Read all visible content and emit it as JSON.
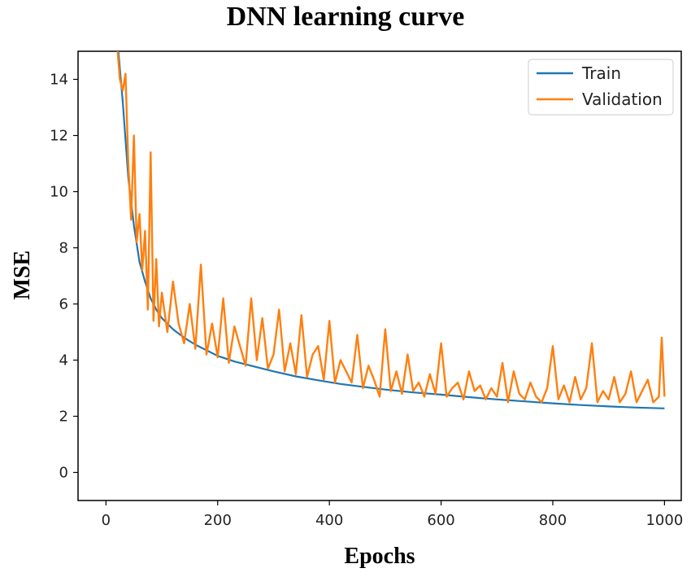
{
  "chart_data": {
    "type": "line",
    "title": "DNN learning curve",
    "xlabel": "Epochs",
    "ylabel": "MSE",
    "xlim": [
      -50,
      1030
    ],
    "ylim": [
      -1,
      15
    ],
    "xticks": [
      0,
      200,
      400,
      600,
      800,
      1000
    ],
    "yticks": [
      0,
      2,
      4,
      6,
      8,
      10,
      12,
      14
    ],
    "grid": false,
    "legend_position": "top-right",
    "series": [
      {
        "name": "Train",
        "color": "#1f77b4",
        "x": [
          20,
          30,
          40,
          50,
          60,
          70,
          80,
          90,
          100,
          120,
          140,
          160,
          180,
          200,
          230,
          260,
          300,
          340,
          380,
          420,
          460,
          500,
          550,
          600,
          650,
          700,
          750,
          800,
          850,
          900,
          950,
          1000
        ],
        "y": [
          15.5,
          13.2,
          10.5,
          8.8,
          7.5,
          6.8,
          6.2,
          5.8,
          5.5,
          5.1,
          4.8,
          4.55,
          4.35,
          4.15,
          3.95,
          3.8,
          3.6,
          3.42,
          3.28,
          3.15,
          3.05,
          2.95,
          2.85,
          2.77,
          2.68,
          2.6,
          2.53,
          2.46,
          2.4,
          2.35,
          2.31,
          2.28
        ]
      },
      {
        "name": "Validation",
        "color": "#ff7f0e",
        "x": [
          20,
          25,
          30,
          35,
          40,
          45,
          50,
          55,
          60,
          65,
          70,
          75,
          80,
          85,
          90,
          95,
          100,
          110,
          120,
          130,
          140,
          150,
          160,
          170,
          180,
          190,
          200,
          210,
          220,
          230,
          240,
          250,
          260,
          270,
          280,
          290,
          300,
          310,
          320,
          330,
          340,
          350,
          360,
          370,
          380,
          390,
          400,
          410,
          420,
          430,
          440,
          450,
          460,
          470,
          480,
          490,
          500,
          510,
          520,
          530,
          540,
          550,
          560,
          570,
          580,
          590,
          600,
          610,
          620,
          630,
          640,
          650,
          660,
          670,
          680,
          690,
          700,
          710,
          720,
          730,
          740,
          750,
          760,
          770,
          780,
          790,
          800,
          810,
          820,
          830,
          840,
          850,
          860,
          870,
          880,
          890,
          900,
          910,
          920,
          930,
          940,
          950,
          960,
          970,
          980,
          990,
          995,
          1000
        ],
        "y": [
          15.2,
          14.0,
          13.6,
          14.2,
          11.0,
          9.0,
          12.0,
          8.2,
          9.2,
          7.2,
          8.6,
          5.8,
          11.4,
          5.4,
          7.6,
          5.2,
          6.4,
          5.0,
          6.8,
          5.3,
          4.6,
          6.0,
          4.4,
          7.4,
          4.2,
          5.3,
          4.1,
          6.2,
          3.9,
          5.2,
          4.5,
          3.8,
          6.2,
          4.0,
          5.5,
          3.7,
          4.2,
          5.8,
          3.6,
          4.6,
          3.5,
          5.6,
          3.4,
          4.2,
          4.5,
          3.3,
          5.4,
          3.2,
          4.0,
          3.6,
          3.2,
          4.9,
          3.0,
          3.8,
          3.3,
          2.7,
          5.1,
          2.9,
          3.6,
          2.8,
          4.2,
          2.9,
          3.2,
          2.7,
          3.5,
          2.8,
          4.6,
          2.7,
          3.0,
          3.2,
          2.6,
          3.6,
          2.9,
          3.1,
          2.6,
          3.0,
          2.7,
          3.9,
          2.5,
          3.6,
          2.8,
          2.6,
          3.2,
          2.7,
          2.5,
          3.0,
          4.5,
          2.6,
          3.1,
          2.5,
          3.4,
          2.6,
          3.0,
          4.6,
          2.5,
          2.9,
          2.6,
          3.4,
          2.5,
          2.8,
          3.6,
          2.5,
          2.9,
          3.3,
          2.5,
          2.7,
          4.8,
          2.7
        ]
      }
    ]
  }
}
